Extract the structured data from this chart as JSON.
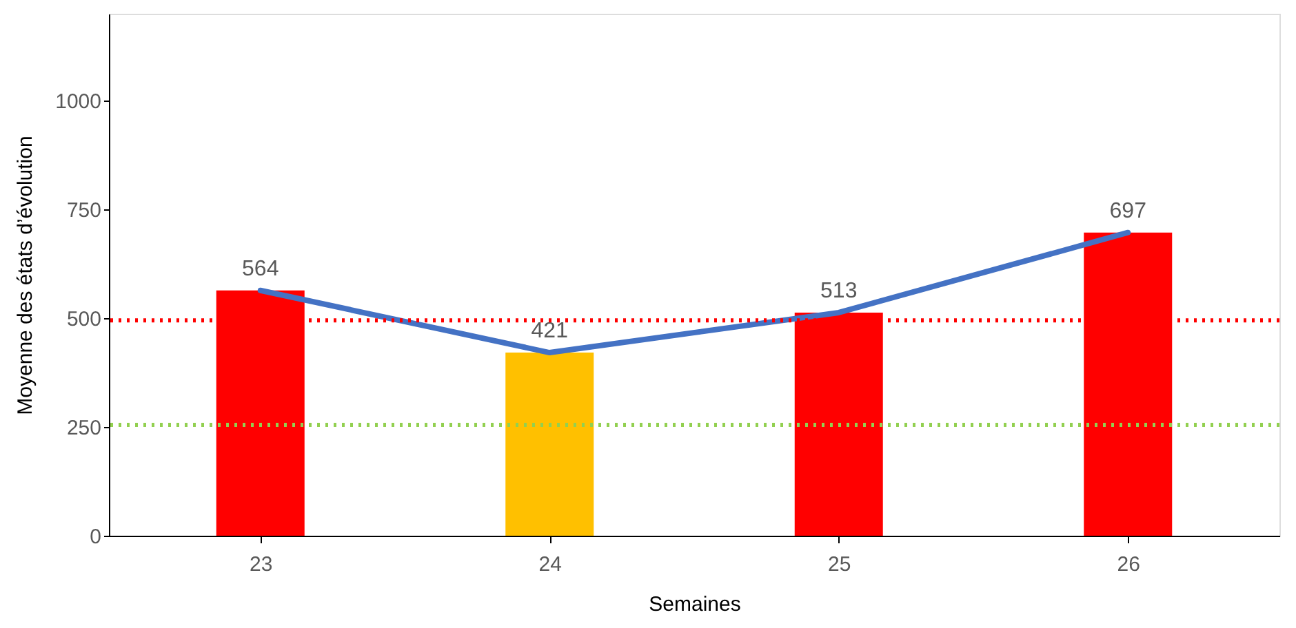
{
  "chart_data": {
    "type": "bar",
    "xlabel": "Semaines",
    "ylabel": "Moyenne des états d’évolution",
    "categories": [
      "23",
      "24",
      "25",
      "26"
    ],
    "series": [
      {
        "colors": [
          "#ff0000",
          "#ffc000",
          "#ff0000",
          "#ff0000"
        ],
        "values": [
          564,
          421,
          513,
          697
        ]
      },
      {
        "type": "line",
        "color": "#4472c4",
        "values": [
          564,
          421,
          513,
          697
        ],
        "value_labels": [
          "564",
          "421",
          "513",
          "697"
        ]
      }
    ],
    "ylim": [
      0,
      1200
    ],
    "yticks": [
      0,
      250,
      500,
      750,
      1000
    ],
    "grid": false,
    "ref_lines": [
      {
        "axis": "y",
        "value": 495,
        "color": "#ff0000",
        "line_style": "dotted"
      },
      {
        "axis": "y",
        "value": 255,
        "color": "#92d050",
        "line_style": "dotted"
      }
    ]
  }
}
